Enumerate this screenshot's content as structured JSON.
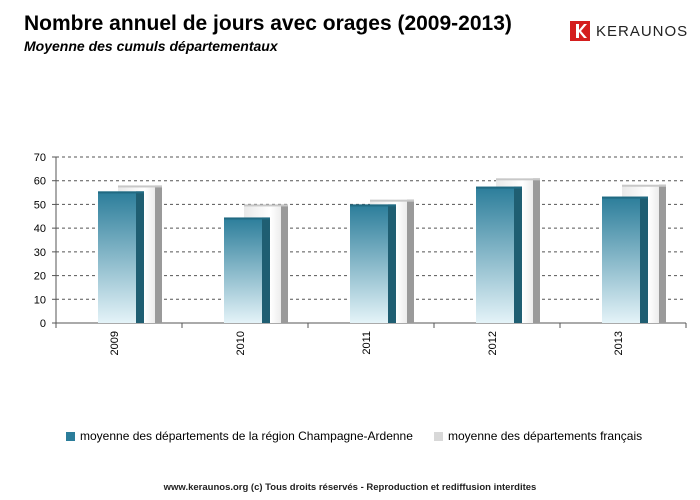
{
  "header": {
    "title": "Nombre annuel de jours avec orages (2009-2013)",
    "subtitle": "Moyenne des cumuls départementaux"
  },
  "logo": {
    "text": "KERAUNOS",
    "color": "#d41e1e"
  },
  "chart_data": {
    "type": "bar",
    "title": "Nombre annuel de jours avec orages (2009-2013)",
    "subtitle": "Moyenne des cumuls départementaux",
    "categories": [
      "2009",
      "2010",
      "2011",
      "2012",
      "2013"
    ],
    "series": [
      {
        "name": "moyenne des départements de la région Champagne-Ardenne",
        "values": [
          55.5,
          44.5,
          50,
          57.5,
          53.3
        ],
        "color": "#2b7d9a"
      },
      {
        "name": "moyenne des départements français",
        "values": [
          58,
          50,
          52,
          61,
          58.3
        ],
        "color": "#cfcfcf"
      }
    ],
    "ylim": [
      0,
      70
    ],
    "yticks": [
      0,
      10,
      20,
      30,
      40,
      50,
      60,
      70
    ],
    "xlabel": "",
    "ylabel": "",
    "grid": true,
    "legend_position": "bottom"
  },
  "footer": {
    "text": "www.keraunos.org  (c) Tous droits réservés - Reproduction et rediffusion interdites"
  }
}
